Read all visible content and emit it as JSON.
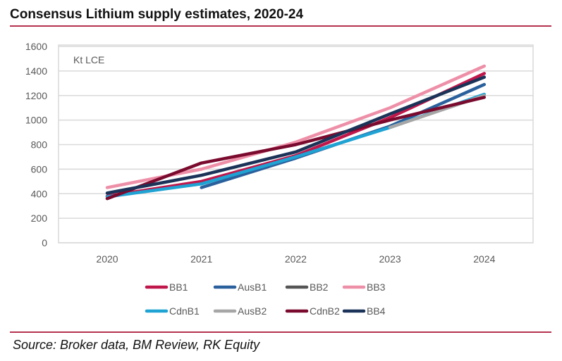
{
  "title": "Consensus Lithium supply estimates, 2020-24",
  "source": "Source: Broker data, BM Review, RK Equity",
  "chart_data": {
    "type": "line",
    "title": "Consensus Lithium supply estimates, 2020-24",
    "ylabel": "Kt LCE",
    "categories": [
      "2020",
      "2021",
      "2022",
      "2023",
      "2024"
    ],
    "ylim": [
      0,
      1600
    ],
    "yticks": [
      0,
      200,
      400,
      600,
      800,
      1000,
      1200,
      1400,
      1600
    ],
    "grid": true,
    "legend_placement": "bottom",
    "series": [
      {
        "name": "BB1",
        "color": "#c0174b",
        "values": [
          380,
          500,
          710,
          1020,
          1380
        ]
      },
      {
        "name": "AusB1",
        "color": "#2a609c",
        "values": [
          null,
          450,
          690,
          950,
          1290
        ]
      },
      {
        "name": "BB2",
        "color": "#555555",
        "values": [
          null,
          null,
          null,
          null,
          null
        ]
      },
      {
        "name": "BB3",
        "color": "#ee8fa8",
        "values": [
          450,
          600,
          820,
          1100,
          1440
        ]
      },
      {
        "name": "CdnB1",
        "color": "#1fa3d3",
        "values": [
          375,
          480,
          700,
          940,
          1210
        ]
      },
      {
        "name": "AusB2",
        "color": "#a6a6a6",
        "values": [
          null,
          null,
          null,
          940,
          1200
        ]
      },
      {
        "name": "CdnB2",
        "color": "#7a0a2e",
        "values": [
          360,
          650,
          800,
          1000,
          1185
        ]
      },
      {
        "name": "BB4",
        "color": "#1b3358",
        "values": [
          405,
          550,
          740,
          1050,
          1350
        ]
      }
    ]
  }
}
